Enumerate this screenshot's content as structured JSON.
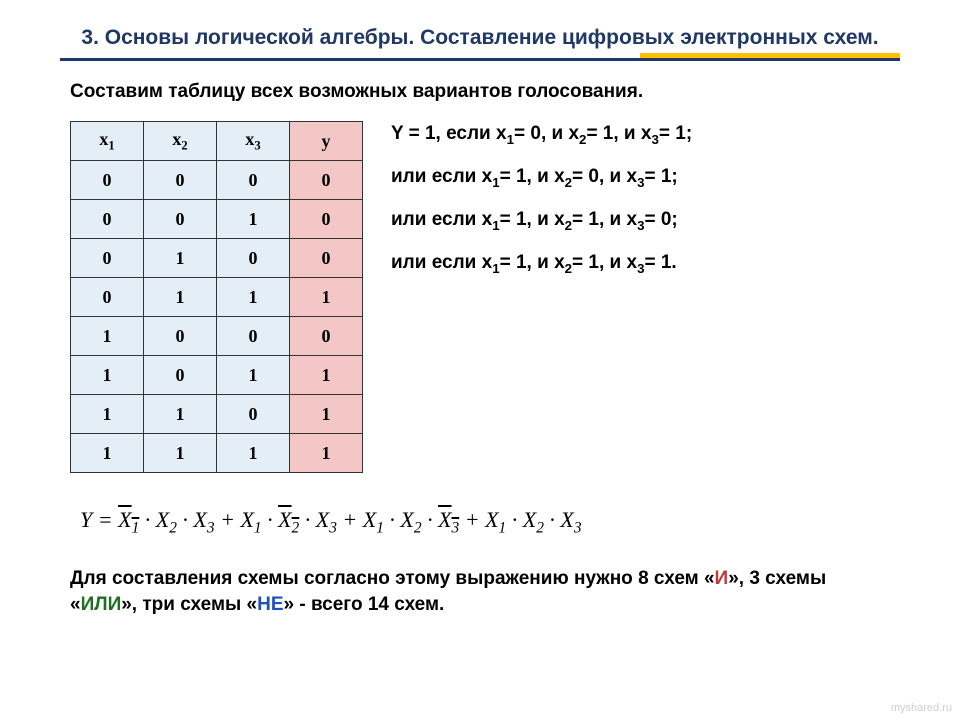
{
  "title_color": "#1f3864",
  "title_fontsize": "21px",
  "subtitle_fontsize": "19px",
  "rules_fontsize": "19px",
  "footer_fontsize": "19px",
  "title": "3. Основы логической алгебры. Составление цифровых электронных схем.",
  "subtitle": "Составим таблицу всех возможных вариантов голосования.",
  "table": {
    "headers": {
      "x1": "x",
      "x1_sub": "1",
      "x2": "x",
      "x2_sub": "2",
      "x3": "x",
      "x3_sub": "3",
      "y": "y"
    },
    "rows": [
      {
        "x1": "0",
        "x2": "0",
        "x3": "0",
        "y": "0"
      },
      {
        "x1": "0",
        "x2": "0",
        "x3": "1",
        "y": "0"
      },
      {
        "x1": "0",
        "x2": "1",
        "x3": "0",
        "y": "0"
      },
      {
        "x1": "0",
        "x2": "1",
        "x3": "1",
        "y": "1"
      },
      {
        "x1": "1",
        "x2": "0",
        "x3": "0",
        "y": "0"
      },
      {
        "x1": "1",
        "x2": "0",
        "x3": "1",
        "y": "1"
      },
      {
        "x1": "1",
        "x2": "1",
        "x3": "0",
        "y": "1"
      },
      {
        "x1": "1",
        "x2": "1",
        "x3": "1",
        "y": "1"
      }
    ],
    "col_x_bg": "#e4eef6",
    "col_y_bg": "#f3c7c6",
    "border_color": "#333333"
  },
  "rules": {
    "line1_a": "Y = 1, если x",
    "line1_b": "= 0, и x",
    "line1_c": "= 1, и x",
    "line1_d": "= 1;",
    "line2_a": "или если x",
    "line2_b": "= 1, и x",
    "line2_c": "= 0, и x",
    "line2_d": "= 1;",
    "line3_a": "или если x",
    "line3_b": "= 1, и x",
    "line3_c": "= 1, и x",
    "line3_d": "= 0;",
    "line4_a": "или если x",
    "line4_b": "= 1, и x",
    "line4_c": "= 1, и x",
    "line4_d": "= 1.",
    "s1": "1",
    "s2": "2",
    "s3": "3"
  },
  "formula": {
    "Y": "Y",
    "eq": " = ",
    "t1a": "X",
    "t1as": "1",
    "t1b": "X",
    "t1bs": "2",
    "t1c": "X",
    "t1cs": "3",
    "t2a": "X",
    "t2as": "1",
    "t2b": "X",
    "t2bs": "2",
    "t2c": "X",
    "t2cs": "3",
    "t3a": "X",
    "t3as": "1",
    "t3b": "X",
    "t3bs": "2",
    "t3c": "X",
    "t3cs": "3",
    "t4a": "X",
    "t4as": "1",
    "t4b": "X",
    "t4bs": "2",
    "t4c": "X",
    "t4cs": "3",
    "dot": " · ",
    "plus": " + "
  },
  "footer": {
    "p1": "Для составления схемы согласно этому выражению нужно 8 схем «",
    "and": "И",
    "p2": "», 3 схемы «",
    "or": "ИЛИ",
    "p3": "», три схемы «",
    "not": "НЕ",
    "p4": "» - всего 14 схем."
  },
  "watermark": "myshared.ru",
  "colors": {
    "and": "#bf3b3b",
    "or": "#1f6f1f",
    "not": "#1f50bf"
  }
}
